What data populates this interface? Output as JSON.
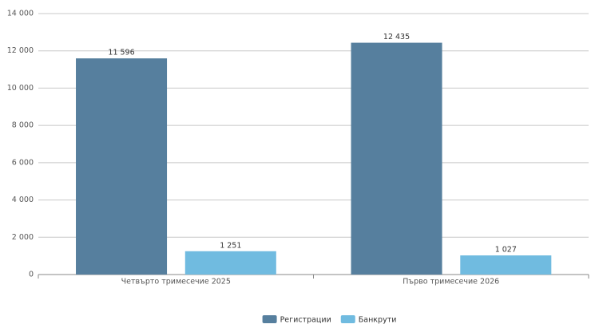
{
  "chart_data": {
    "type": "bar",
    "categories": [
      "Четвърто тримесечие 2025",
      "Първо тримесечие 2026"
    ],
    "series": [
      {
        "name": "Регистрации",
        "color": "#567f9e",
        "values": [
          11596,
          12435
        ],
        "value_labels": [
          "11 596",
          "12 435"
        ]
      },
      {
        "name": "Банкрути",
        "color": "#70bbe0",
        "values": [
          1251,
          1027
        ],
        "value_labels": [
          "1 251",
          "1 027"
        ]
      }
    ],
    "ylim": [
      0,
      14000
    ],
    "yticks": [
      0,
      {
        "value": 2000,
        "label": "2 000"
      },
      {
        "value": 4000,
        "label": "4 000"
      },
      {
        "value": 6000,
        "label": "6 000"
      },
      {
        "value": 8000,
        "label": "8 000"
      },
      {
        "value": 10000,
        "label": "10 000"
      },
      {
        "value": 12000,
        "label": "12 000"
      },
      {
        "value": 14000,
        "label": "14 000"
      }
    ],
    "grid": true,
    "legend": "bottom"
  }
}
